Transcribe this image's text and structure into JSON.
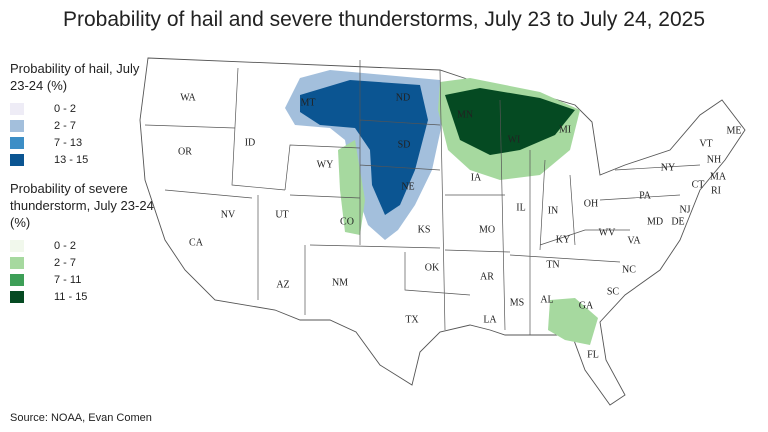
{
  "title": "Probability of hail and severe thunderstorms, July 23 to July 24, 2025",
  "legends": [
    {
      "title": "Probability of hail, July 23-24 (%)",
      "items": [
        {
          "label": "0 - 2",
          "color": "#eeecf6"
        },
        {
          "label": "2 - 7",
          "color": "#a3bfdc"
        },
        {
          "label": "7 - 13",
          "color": "#3c8ec6"
        },
        {
          "label": "13 - 15",
          "color": "#0b5592"
        }
      ]
    },
    {
      "title": "Probability of severe thunderstorm, July 23-24 (%)",
      "items": [
        {
          "label": "0 - 2",
          "color": "#f1f8ec"
        },
        {
          "label": "2 - 7",
          "color": "#a6d99f"
        },
        {
          "label": "7 - 11",
          "color": "#3d9f57"
        },
        {
          "label": "11 - 15",
          "color": "#054a22"
        }
      ]
    }
  ],
  "states": [
    "WA",
    "OR",
    "CA",
    "NV",
    "ID",
    "MT",
    "WY",
    "UT",
    "AZ",
    "CO",
    "NM",
    "ND",
    "SD",
    "NE",
    "KS",
    "OK",
    "TX",
    "MN",
    "IA",
    "MO",
    "AR",
    "LA",
    "WI",
    "IL",
    "MS",
    "MI",
    "IN",
    "KY",
    "TN",
    "AL",
    "GA",
    "FL",
    "SC",
    "NC",
    "VA",
    "WV",
    "OH",
    "PA",
    "NY",
    "ME",
    "VT",
    "NH",
    "MA",
    "CT",
    "RI",
    "NJ",
    "DE",
    "MD"
  ],
  "source": "Source: NOAA, Evan Comen"
}
